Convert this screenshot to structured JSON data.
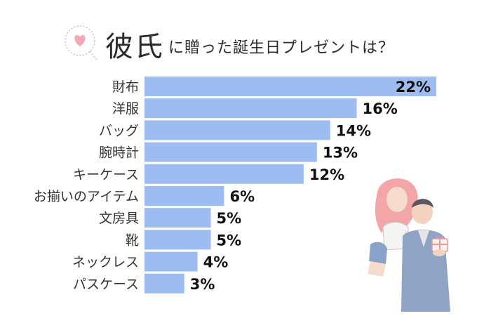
{
  "title": {
    "emphasis": "彼氏",
    "rest": "に贈った誕生日プレゼントは？"
  },
  "colors": {
    "bar": "#9dbdf2",
    "label_text": "#333333",
    "value_text": "#111111",
    "heart": "#f3a9b6"
  },
  "chart_data": {
    "type": "bar",
    "orientation": "horizontal",
    "categories": [
      "財布",
      "洋服",
      "バッグ",
      "腕時計",
      "キーケース",
      "お揃いのアイテム",
      "文房具",
      "靴",
      "ネックレス",
      "パスケース"
    ],
    "values": [
      22,
      16,
      14,
      13,
      12,
      6,
      5,
      5,
      4,
      3
    ],
    "value_labels": [
      "22%",
      "16%",
      "14%",
      "13%",
      "12%",
      "6%",
      "5%",
      "5%",
      "4%",
      "3%"
    ],
    "unit": "%"
  }
}
